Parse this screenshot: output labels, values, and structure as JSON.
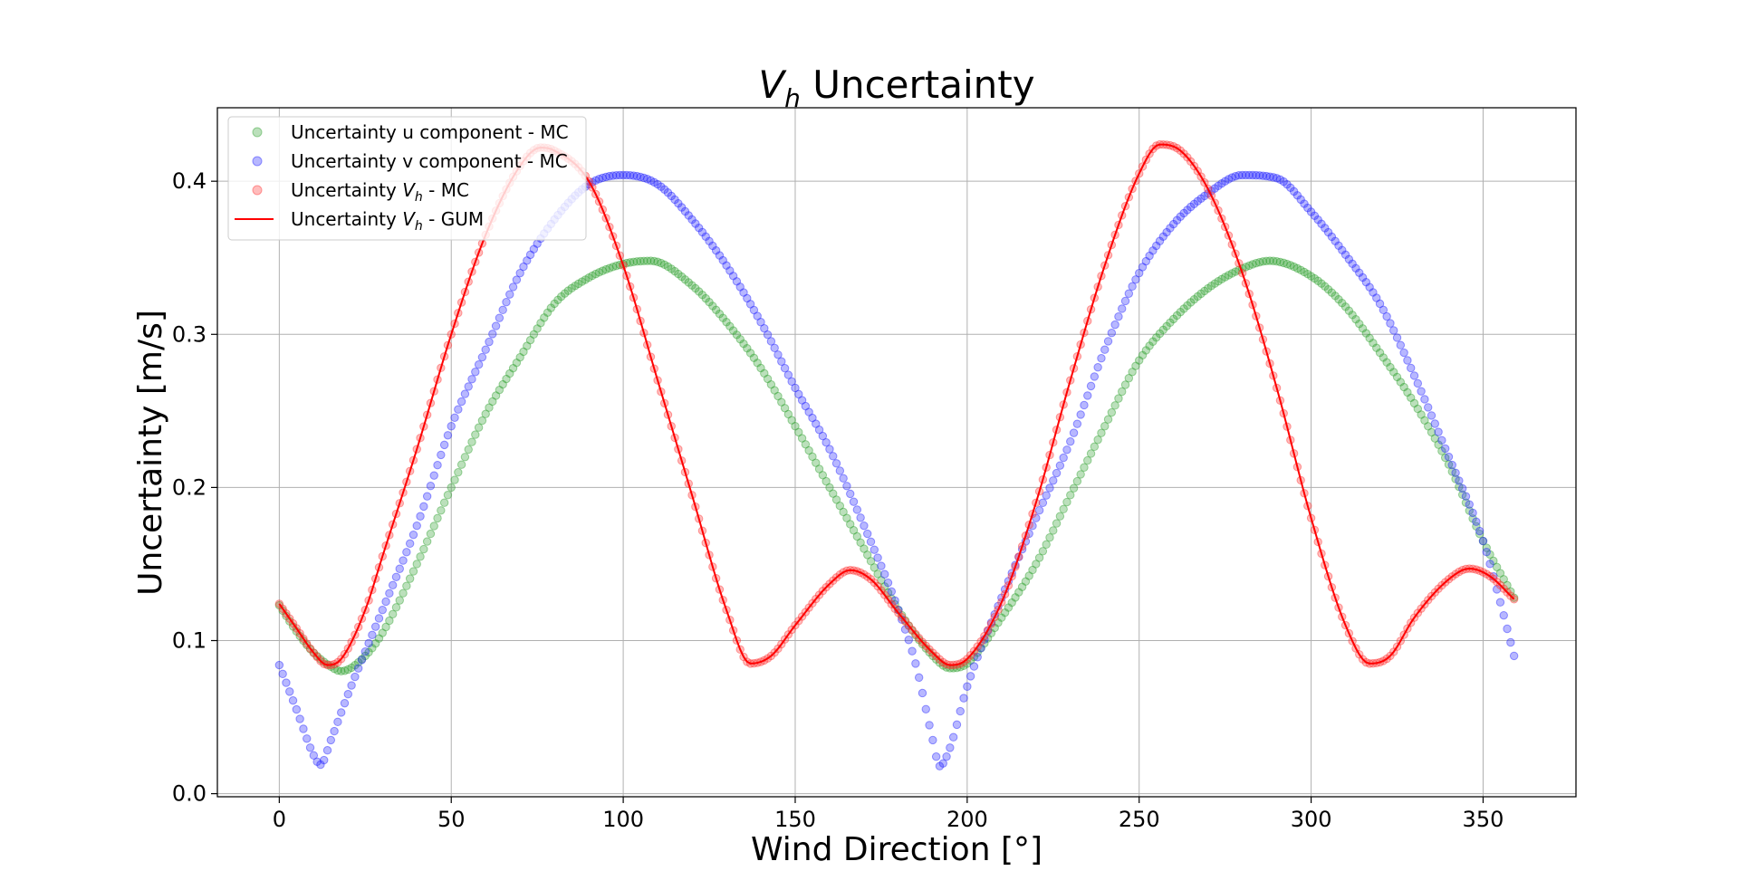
{
  "chart_data": {
    "type": "scatter",
    "title_main": "V",
    "title_sub": "h",
    "title_rest": " Uncertainty",
    "xlabel": "Wind Direction [°]",
    "ylabel": "Uncertainty [m/s]",
    "xlim": [
      -18,
      377
    ],
    "ylim": [
      -0.002,
      0.448
    ],
    "xticks": [
      0,
      50,
      100,
      150,
      200,
      250,
      300,
      350
    ],
    "yticks": [
      0.0,
      0.1,
      0.2,
      0.3,
      0.4
    ],
    "xtick_labels": [
      "0",
      "50",
      "100",
      "150",
      "200",
      "250",
      "300",
      "350"
    ],
    "ytick_labels": [
      "0.0",
      "0.1",
      "0.2",
      "0.3",
      "0.4"
    ],
    "grid": true,
    "legend_position": "upper-left",
    "x_range": [
      0,
      359
    ],
    "x_step": 1,
    "series": [
      {
        "name": "Uncertainty u component - MC",
        "kind": "scatter",
        "color": "#2ca02c",
        "keypoints": [
          [
            0,
            0.123
          ],
          [
            5,
            0.106
          ],
          [
            10,
            0.092
          ],
          [
            15,
            0.083
          ],
          [
            18,
            0.08
          ],
          [
            25,
            0.09
          ],
          [
            30,
            0.105
          ],
          [
            40,
            0.15
          ],
          [
            50,
            0.2
          ],
          [
            60,
            0.248
          ],
          [
            70,
            0.285
          ],
          [
            80,
            0.32
          ],
          [
            90,
            0.337
          ],
          [
            100,
            0.346
          ],
          [
            108,
            0.348
          ],
          [
            120,
            0.332
          ],
          [
            130,
            0.308
          ],
          [
            140,
            0.278
          ],
          [
            150,
            0.24
          ],
          [
            160,
            0.2
          ],
          [
            170,
            0.16
          ],
          [
            180,
            0.12
          ],
          [
            190,
            0.09
          ],
          [
            195,
            0.082
          ],
          [
            200,
            0.085
          ],
          [
            210,
            0.115
          ],
          [
            220,
            0.15
          ],
          [
            230,
            0.195
          ],
          [
            240,
            0.24
          ],
          [
            250,
            0.283
          ],
          [
            260,
            0.31
          ],
          [
            270,
            0.33
          ],
          [
            280,
            0.343
          ],
          [
            288,
            0.348
          ],
          [
            300,
            0.338
          ],
          [
            310,
            0.318
          ],
          [
            320,
            0.288
          ],
          [
            330,
            0.255
          ],
          [
            340,
            0.215
          ],
          [
            350,
            0.165
          ],
          [
            359,
            0.128
          ]
        ]
      },
      {
        "name": "Uncertainty v component - MC",
        "kind": "scatter",
        "color": "#1f1fff",
        "keypoints": [
          [
            0,
            0.084
          ],
          [
            5,
            0.055
          ],
          [
            10,
            0.025
          ],
          [
            12,
            0.019
          ],
          [
            15,
            0.035
          ],
          [
            20,
            0.065
          ],
          [
            30,
            0.12
          ],
          [
            40,
            0.175
          ],
          [
            50,
            0.24
          ],
          [
            60,
            0.29
          ],
          [
            70,
            0.34
          ],
          [
            80,
            0.375
          ],
          [
            90,
            0.398
          ],
          [
            100,
            0.404
          ],
          [
            110,
            0.398
          ],
          [
            120,
            0.375
          ],
          [
            130,
            0.345
          ],
          [
            140,
            0.308
          ],
          [
            150,
            0.265
          ],
          [
            160,
            0.225
          ],
          [
            170,
            0.175
          ],
          [
            180,
            0.12
          ],
          [
            185,
            0.085
          ],
          [
            190,
            0.035
          ],
          [
            192,
            0.018
          ],
          [
            195,
            0.03
          ],
          [
            200,
            0.07
          ],
          [
            210,
            0.128
          ],
          [
            220,
            0.18
          ],
          [
            230,
            0.23
          ],
          [
            240,
            0.29
          ],
          [
            250,
            0.34
          ],
          [
            260,
            0.372
          ],
          [
            270,
            0.392
          ],
          [
            280,
            0.404
          ],
          [
            290,
            0.402
          ],
          [
            300,
            0.38
          ],
          [
            310,
            0.352
          ],
          [
            320,
            0.32
          ],
          [
            330,
            0.273
          ],
          [
            340,
            0.22
          ],
          [
            350,
            0.165
          ],
          [
            355,
            0.125
          ],
          [
            359,
            0.09
          ]
        ]
      },
      {
        "name": "Uncertainty V_h - MC",
        "kind": "scatter",
        "color": "#ff3030",
        "keypoints": [
          [
            0,
            0.124
          ],
          [
            5,
            0.108
          ],
          [
            10,
            0.092
          ],
          [
            14,
            0.084
          ],
          [
            18,
            0.088
          ],
          [
            25,
            0.12
          ],
          [
            30,
            0.155
          ],
          [
            40,
            0.225
          ],
          [
            50,
            0.3
          ],
          [
            60,
            0.365
          ],
          [
            70,
            0.41
          ],
          [
            76,
            0.422
          ],
          [
            80,
            0.42
          ],
          [
            90,
            0.4
          ],
          [
            100,
            0.345
          ],
          [
            110,
            0.27
          ],
          [
            120,
            0.195
          ],
          [
            130,
            0.12
          ],
          [
            137,
            0.085
          ],
          [
            143,
            0.09
          ],
          [
            150,
            0.11
          ],
          [
            160,
            0.137
          ],
          [
            166,
            0.146
          ],
          [
            172,
            0.14
          ],
          [
            180,
            0.118
          ],
          [
            190,
            0.092
          ],
          [
            195,
            0.084
          ],
          [
            200,
            0.088
          ],
          [
            210,
            0.125
          ],
          [
            220,
            0.19
          ],
          [
            230,
            0.27
          ],
          [
            240,
            0.345
          ],
          [
            250,
            0.405
          ],
          [
            256,
            0.424
          ],
          [
            262,
            0.42
          ],
          [
            270,
            0.395
          ],
          [
            280,
            0.34
          ],
          [
            290,
            0.265
          ],
          [
            300,
            0.18
          ],
          [
            310,
            0.11
          ],
          [
            317,
            0.085
          ],
          [
            323,
            0.09
          ],
          [
            330,
            0.115
          ],
          [
            340,
            0.14
          ],
          [
            346,
            0.147
          ],
          [
            352,
            0.142
          ],
          [
            359,
            0.127
          ]
        ]
      },
      {
        "name": "Uncertainty V_h - GUM",
        "kind": "line",
        "color": "#ff0000",
        "same_as_series_index": 2
      }
    ],
    "legend": [
      {
        "pre": "Uncertainty u component - MC",
        "sub": "",
        "post": ""
      },
      {
        "pre": "Uncertainty v component - MC",
        "sub": "",
        "post": ""
      },
      {
        "pre": "Uncertainty ",
        "italic": "V",
        "sub": "h",
        "post": " - MC"
      },
      {
        "pre": "Uncertainty ",
        "italic": "V",
        "sub": "h",
        "post": " - GUM"
      }
    ]
  }
}
